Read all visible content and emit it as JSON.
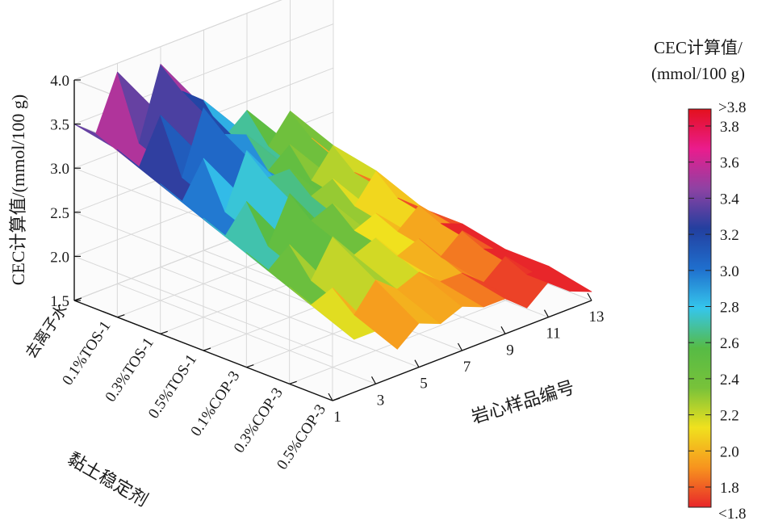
{
  "chart_data": {
    "type": "surface3d",
    "zlabel": "CEC计算值/(mmol/100 g)",
    "xlabel": "岩心样品编号",
    "ylabel": "黏土稳定剂",
    "x_ticks": [
      "1",
      "3",
      "5",
      "7",
      "9",
      "11",
      "13"
    ],
    "x": [
      1,
      2,
      3,
      4,
      5,
      6,
      7,
      8,
      9,
      10,
      11,
      12,
      13
    ],
    "y_categories": [
      "去离子水",
      "0.1%TOS-1",
      "0.3%TOS-1",
      "0.5%TOS-1",
      "0.1%COP-3",
      "0.3%COP-3",
      "0.5%COP-3"
    ],
    "z_ticks": [
      "1.5",
      "2.0",
      "2.5",
      "3.0",
      "3.5",
      "4.0"
    ],
    "zlim": [
      1.5,
      4.0
    ],
    "values": [
      [
        3.5,
        3.3,
        3.9,
        3.0,
        3.8,
        3.4,
        3.2,
        2.7,
        2.9,
        2.4,
        2.7,
        2.3,
        2.0
      ],
      [
        3.4,
        3.1,
        3.6,
        2.8,
        3.5,
        3.1,
        3.0,
        2.5,
        2.7,
        2.2,
        2.5,
        2.1,
        1.9
      ],
      [
        3.2,
        2.9,
        3.3,
        2.6,
        3.2,
        2.8,
        2.8,
        2.4,
        2.5,
        2.1,
        2.4,
        2.0,
        1.8
      ],
      [
        3.0,
        2.7,
        3.0,
        2.4,
        2.9,
        2.5,
        2.6,
        2.2,
        2.3,
        2.0,
        2.2,
        1.9,
        1.8
      ],
      [
        2.8,
        2.5,
        2.7,
        2.2,
        2.6,
        2.3,
        2.4,
        2.1,
        2.2,
        1.9,
        2.1,
        1.8,
        1.7
      ],
      [
        2.6,
        2.3,
        2.4,
        2.0,
        2.3,
        2.1,
        2.2,
        2.0,
        2.0,
        1.8,
        2.0,
        1.7,
        1.7
      ],
      [
        2.4,
        2.1,
        2.1,
        1.8,
        2.0,
        1.9,
        2.0,
        1.9,
        1.9,
        1.7,
        1.9,
        1.7,
        1.6
      ]
    ],
    "colorbar": {
      "title_line1": "CEC计算值/",
      "title_line2": "(mmol/100 g)",
      "tick_labels": [
        "3.8",
        "3.6",
        "3.4",
        "3.2",
        "3.0",
        "2.8",
        "2.6",
        "2.4",
        "2.2",
        "2.0",
        "1.8"
      ],
      "top_label": ">3.8",
      "bottom_label": "<1.8",
      "range": [
        1.8,
        3.8
      ],
      "stops": [
        "#e3101d",
        "#ea1c8d",
        "#8e42a3",
        "#233f9f",
        "#1f6ecd",
        "#35c6ec",
        "#56bb45",
        "#78c23a",
        "#f0e11e",
        "#f7941e",
        "#e8262a"
      ]
    }
  }
}
